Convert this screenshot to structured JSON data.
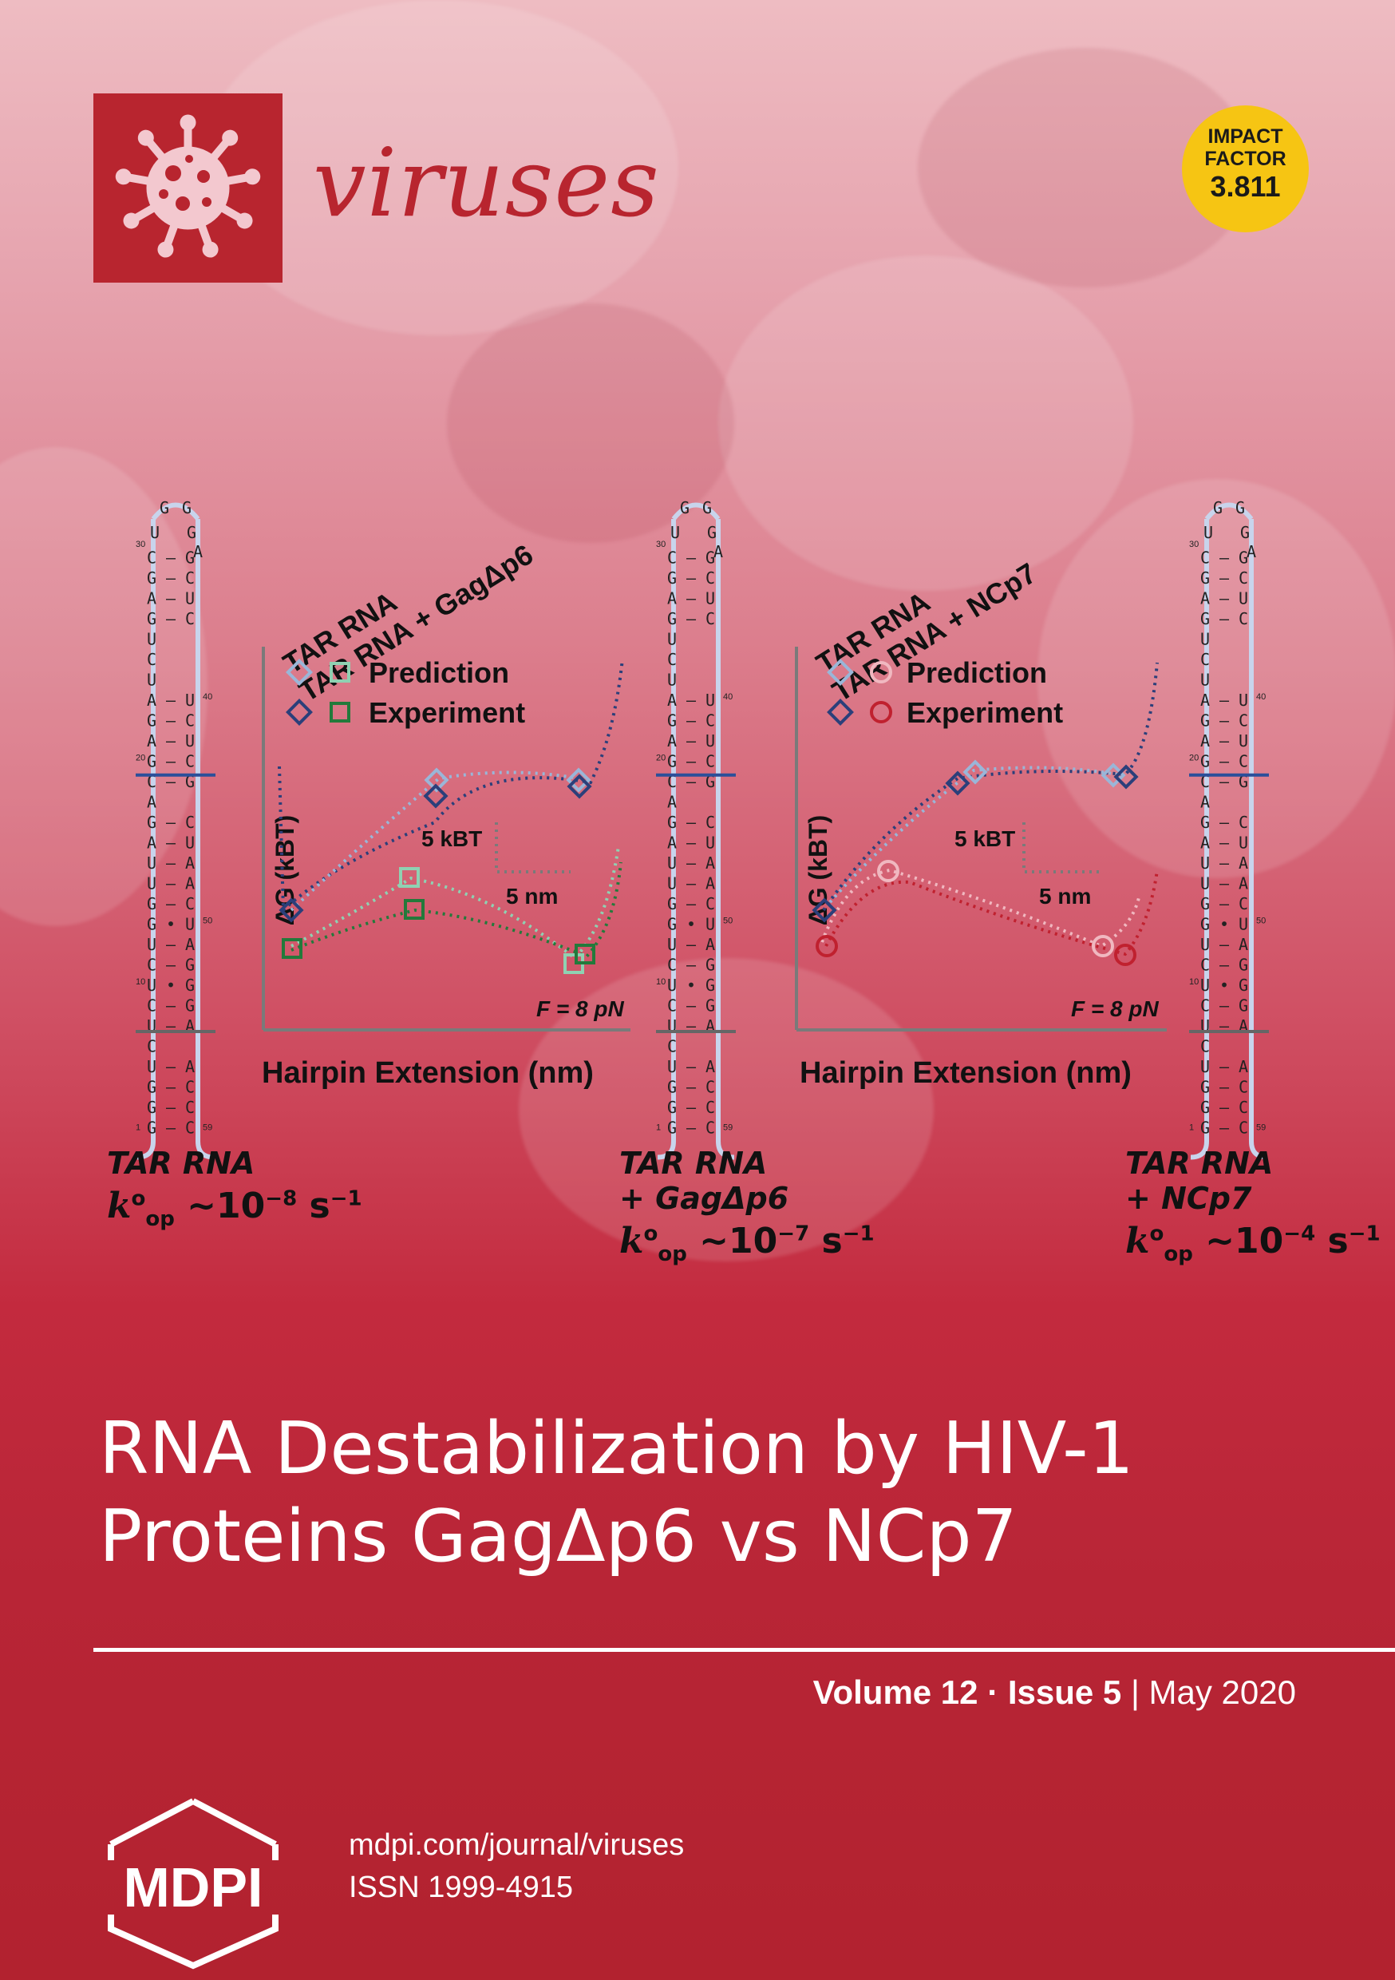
{
  "journal": {
    "name": "viruses",
    "brand_color": "#b8252f",
    "logo_icon": "virus-icon"
  },
  "impact_factor": {
    "line1": "IMPACT",
    "line2": "FACTOR",
    "value": "3.811",
    "color": "#f6c513"
  },
  "figure": {
    "panels": [
      {
        "legend_title_1": "TAR RNA",
        "legend_title_2": "TAR RNA + GagΔp6",
        "legend_prediction": "Prediction",
        "legend_experiment": "Experiment",
        "y_axis_label": "ΔG (kBT)",
        "x_axis_label": "Hairpin Extension (nm)",
        "scale_energy": "5 kBT",
        "scale_length": "5 nm",
        "force": "F = 8 pN",
        "prediction_color": "#9ab6d8",
        "experiment_color": "#2b3f7a",
        "protein_prediction_color": "#8fd1b2",
        "protein_experiment_color": "#237a3b",
        "marker": "square"
      },
      {
        "legend_title_1": "TAR RNA",
        "legend_title_2": "TAR RNA + NCp7",
        "legend_prediction": "Prediction",
        "legend_experiment": "Experiment",
        "y_axis_label": "ΔG (kBT)",
        "x_axis_label": "Hairpin Extension (nm)",
        "scale_energy": "5 kBT",
        "scale_length": "5 nm",
        "force": "F = 8 pN",
        "prediction_color": "#9ab6d8",
        "experiment_color": "#2b3f7a",
        "protein_prediction_color": "#f0b8c0",
        "protein_experiment_color": "#c0212f",
        "marker": "circle"
      }
    ],
    "hairpin": {
      "loop": [
        "G",
        "G",
        "U",
        "G",
        "A"
      ],
      "numbers": [
        "30",
        "40",
        "20",
        "50",
        "10",
        "1",
        "59"
      ],
      "pairs": [
        [
          "C",
          "–",
          "G"
        ],
        [
          "G",
          "–",
          "C"
        ],
        [
          "A",
          "–",
          "U"
        ],
        [
          "G",
          "–",
          "C"
        ],
        [
          "U",
          " ",
          " "
        ],
        [
          "C",
          " ",
          " "
        ],
        [
          "U",
          " ",
          " "
        ],
        [
          "A",
          "–",
          "U"
        ],
        [
          "G",
          "–",
          "C"
        ],
        [
          "A",
          "–",
          "U"
        ],
        [
          "G",
          "–",
          "C"
        ],
        [
          "C",
          "–",
          "G"
        ],
        [
          "A",
          " ",
          " "
        ],
        [
          "G",
          "–",
          "C"
        ],
        [
          "A",
          "–",
          "U"
        ],
        [
          "U",
          "–",
          "A"
        ],
        [
          "U",
          "–",
          "A"
        ],
        [
          "G",
          "–",
          "C"
        ],
        [
          "G",
          "•",
          "U"
        ],
        [
          "U",
          "–",
          "A"
        ],
        [
          "C",
          "–",
          "G"
        ],
        [
          "U",
          "•",
          "G"
        ],
        [
          "C",
          "–",
          "G"
        ],
        [
          "U",
          "–",
          "A"
        ],
        [
          "C",
          " ",
          " "
        ],
        [
          "U",
          "–",
          "A"
        ],
        [
          "G",
          "–",
          "C"
        ],
        [
          "G",
          "–",
          "C"
        ],
        [
          "G",
          "–",
          "C"
        ]
      ]
    },
    "captions": [
      {
        "name_1": "TAR RNA",
        "name_2": "",
        "k_sym": "k",
        "k_sup": "o",
        "k_sub": "op",
        "value": "∼10",
        "exp": "−8",
        "unit": "s",
        "unit_exp": "−1"
      },
      {
        "name_1": "TAR RNA",
        "name_2": "+ GagΔp6",
        "k_sym": "k",
        "k_sup": "o",
        "k_sub": "op",
        "value": "∼10",
        "exp": "−7",
        "unit": "s",
        "unit_exp": "−1"
      },
      {
        "name_1": "TAR RNA",
        "name_2": "+ NCp7",
        "k_sym": "k",
        "k_sup": "o",
        "k_sub": "op",
        "value": "∼10",
        "exp": "−4",
        "unit": "s",
        "unit_exp": "−1"
      }
    ]
  },
  "article_title": {
    "line1": "RNA Destabilization by HIV-1",
    "line2": "Proteins GagΔp6 vs NCp7"
  },
  "issue": {
    "volume": "Volume 12",
    "sep": " · ",
    "number": "Issue 5",
    "bar": " | ",
    "date": "May 2020"
  },
  "publisher": {
    "name": "MDPI",
    "url": "mdpi.com/journal/viruses",
    "issn": "ISSN 1999-4915"
  }
}
